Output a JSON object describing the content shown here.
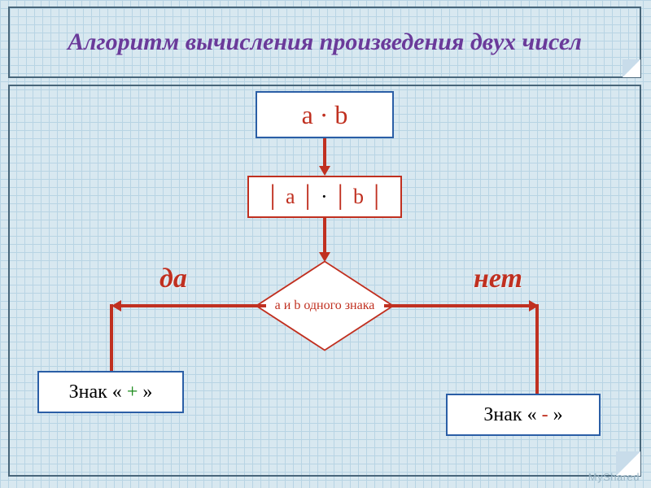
{
  "colors": {
    "grid_bg": "#d8e8f0",
    "grid_line": "#b8d4e4",
    "outline": "#48667a",
    "blue": "#2a5ea6",
    "red": "#c03020",
    "yes_text": "#c03020",
    "no_text": "#c03020",
    "plus": "#1a8a1a",
    "minus": "#c03020",
    "watermark": "#9ab6c6"
  },
  "typography": {
    "title_fontsize": 30,
    "title_color": "#6a3a9a",
    "box1_fontsize": 32,
    "box2_fontsize": 26,
    "diamond_fontsize": 16,
    "result_fontsize": 24,
    "yes_no_fontsize": 34,
    "watermark_fontsize": 13
  },
  "structure": {
    "type": "flowchart",
    "nodes": [
      {
        "id": "start",
        "shape": "rect",
        "border": "#2a5ea6"
      },
      {
        "id": "abs",
        "shape": "rect",
        "border": "#c03020"
      },
      {
        "id": "decision",
        "shape": "diamond",
        "border": "#c03020"
      },
      {
        "id": "plus",
        "shape": "rect",
        "border": "#2a5ea6"
      },
      {
        "id": "minus",
        "shape": "rect",
        "border": "#2a5ea6"
      }
    ],
    "edges": [
      {
        "from": "start",
        "to": "abs"
      },
      {
        "from": "abs",
        "to": "decision"
      },
      {
        "from": "decision",
        "to": "plus",
        "label": "да"
      },
      {
        "from": "decision",
        "to": "minus",
        "label": "нет"
      }
    ]
  },
  "title": "Алгоритм вычисления произведения двух чисел",
  "box1": "a · b",
  "box2_abs_a": "│ a │",
  "box2_dot": " · ",
  "box2_abs_b": "│ b │",
  "diamond": "a и b одного знака",
  "yes": "да",
  "no": "нет",
  "result_prefix": "Знак « ",
  "result_suffix": " »",
  "plus": "+",
  "minus": "-",
  "watermark": "MyShared"
}
